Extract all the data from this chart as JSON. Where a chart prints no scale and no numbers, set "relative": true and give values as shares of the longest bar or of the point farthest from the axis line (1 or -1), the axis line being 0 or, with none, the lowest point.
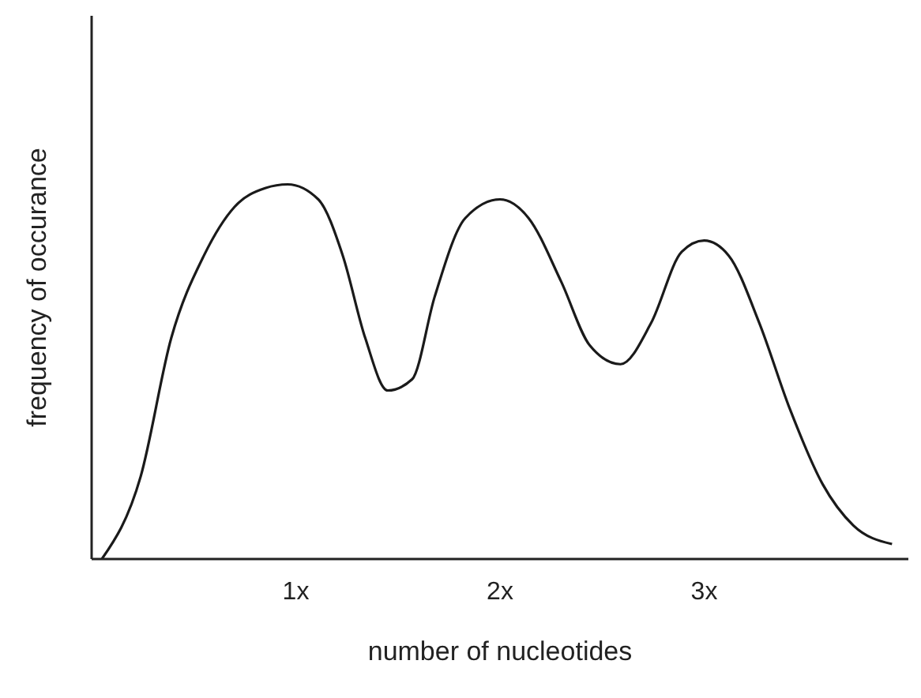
{
  "chart_data": {
    "type": "line",
    "relative": true,
    "xlabel": "number of nucleotides",
    "ylabel": "frequency of occurance",
    "xlim": [
      0,
      4
    ],
    "xticks": [
      {
        "value": 1,
        "label": "1x"
      },
      {
        "value": 2,
        "label": "2x"
      },
      {
        "value": 3,
        "label": "3x"
      }
    ],
    "grid": false,
    "legend": false,
    "marker": "none",
    "line_style": "solid",
    "series": [
      {
        "color": "#1a1a1a",
        "x": [
          0.05,
          0.24,
          0.39,
          0.55,
          0.7,
          0.85,
          0.96,
          1.11,
          1.23,
          1.34,
          1.45,
          1.57,
          1.68,
          1.83,
          2.0,
          2.14,
          2.3,
          2.44,
          2.59,
          2.74,
          2.89,
          3.0,
          3.12,
          3.27,
          3.42,
          3.58,
          3.73,
          3.92
        ],
        "values": [
          0.0,
          0.22,
          0.59,
          0.81,
          0.94,
          0.99,
          1.0,
          0.96,
          0.81,
          0.59,
          0.45,
          0.48,
          0.7,
          0.91,
          0.96,
          0.91,
          0.74,
          0.57,
          0.52,
          0.63,
          0.82,
          0.85,
          0.81,
          0.63,
          0.4,
          0.2,
          0.09,
          0.04
        ]
      }
    ]
  }
}
